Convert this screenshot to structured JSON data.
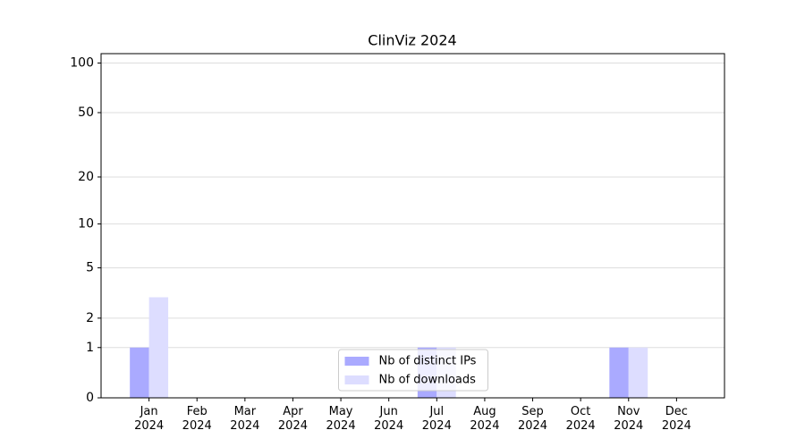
{
  "chart_data": {
    "type": "bar",
    "title": "ClinViz 2024",
    "categories": [
      "Jan\n2024",
      "Feb\n2024",
      "Mar\n2024",
      "Apr\n2024",
      "May\n2024",
      "Jun\n2024",
      "Jul\n2024",
      "Aug\n2024",
      "Sep\n2024",
      "Oct\n2024",
      "Nov\n2024",
      "Dec\n2024"
    ],
    "series": [
      {
        "name": "Nb of distinct IPs",
        "color": "#aaaaff",
        "values": [
          1,
          0,
          0,
          0,
          0,
          0,
          1,
          0,
          0,
          0,
          1,
          0
        ]
      },
      {
        "name": "Nb of downloads",
        "color": "#ddddff",
        "values": [
          3,
          0,
          0,
          0,
          0,
          0,
          1,
          0,
          0,
          0,
          1,
          0
        ]
      }
    ],
    "ylim": [
      0,
      114
    ],
    "yticks": [
      0,
      1,
      2,
      5,
      10,
      20,
      50,
      100
    ],
    "yscale": "log1p",
    "grid": true,
    "legend": "lower center"
  }
}
